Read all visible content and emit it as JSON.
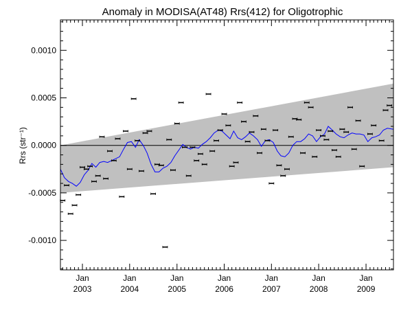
{
  "chart_data": {
    "type": "scatter",
    "title": "Anomaly in MODISA(AT48) Rrs(412) for Oligotrophic",
    "ylabel": "Rrs (str⁻¹)",
    "xlabel": "",
    "xlim": [
      "2002-07-15",
      "2009-08-01"
    ],
    "ylim": [
      -0.00131,
      0.00132
    ],
    "y_ticks": [
      {
        "value": 0.001,
        "label": "0.0010"
      },
      {
        "value": 0.0005,
        "label": "0.0005"
      },
      {
        "value": 0.0,
        "label": "0.0000"
      },
      {
        "value": -0.0005,
        "label": "-0.0005"
      },
      {
        "value": -0.001,
        "label": "-0.0010"
      }
    ],
    "x_ticks": [
      {
        "date": "2003-01-01",
        "month": "Jan",
        "year": "2003"
      },
      {
        "date": "2004-01-01",
        "month": "Jan",
        "year": "2004"
      },
      {
        "date": "2005-01-01",
        "month": "Jan",
        "year": "2005"
      },
      {
        "date": "2006-01-01",
        "month": "Jan",
        "year": "2006"
      },
      {
        "date": "2007-01-01",
        "month": "Jan",
        "year": "2007"
      },
      {
        "date": "2008-01-01",
        "month": "Jan",
        "year": "2008"
      },
      {
        "date": "2009-01-01",
        "month": "Jan",
        "year": "2009"
      }
    ],
    "zero_line": 0.0,
    "grid": false,
    "band": {
      "color": "#c0c0c0",
      "x_start": "2002-07-15",
      "x_end": "2009-08-01",
      "upper_start": 0.0,
      "upper_end": 0.00065,
      "lower_start": -0.0005,
      "lower_end": -0.00023
    },
    "series": [
      {
        "kind": "points",
        "marker": "short horizontal bar with error bars",
        "color": "#000000",
        "points": [
          {
            "x": "2002-08-01",
            "y": -0.00058
          },
          {
            "x": "2002-09-01",
            "y": -0.00042
          },
          {
            "x": "2002-10-01",
            "y": -0.00072
          },
          {
            "x": "2002-11-01",
            "y": -0.00063
          },
          {
            "x": "2002-12-01",
            "y": -0.00052
          },
          {
            "x": "2003-01-01",
            "y": -0.00023
          },
          {
            "x": "2003-02-01",
            "y": -0.00025
          },
          {
            "x": "2003-03-01",
            "y": -0.00022
          },
          {
            "x": "2003-04-01",
            "y": -0.00038
          },
          {
            "x": "2003-05-01",
            "y": -0.00032
          },
          {
            "x": "2003-06-01",
            "y": 9e-05
          },
          {
            "x": "2003-07-01",
            "y": -0.00035
          },
          {
            "x": "2003-08-01",
            "y": -6e-05
          },
          {
            "x": "2003-09-01",
            "y": -0.00016
          },
          {
            "x": "2003-10-01",
            "y": 7e-05
          },
          {
            "x": "2003-11-01",
            "y": -0.00054
          },
          {
            "x": "2003-12-01",
            "y": 0.00015
          },
          {
            "x": "2004-01-01",
            "y": -0.00025
          },
          {
            "x": "2004-02-01",
            "y": 0.00049
          },
          {
            "x": "2004-03-01",
            "y": 5e-05
          },
          {
            "x": "2004-04-01",
            "y": -0.00027
          },
          {
            "x": "2004-05-01",
            "y": 0.00013
          },
          {
            "x": "2004-06-01",
            "y": 0.00015
          },
          {
            "x": "2004-07-01",
            "y": -0.00051
          },
          {
            "x": "2004-08-01",
            "y": -0.0002
          },
          {
            "x": "2004-09-01",
            "y": -0.00021
          },
          {
            "x": "2004-10-01",
            "y": -0.00107
          },
          {
            "x": "2004-11-01",
            "y": 6e-05
          },
          {
            "x": "2004-12-01",
            "y": -0.00026
          },
          {
            "x": "2005-01-01",
            "y": 0.00023
          },
          {
            "x": "2005-02-01",
            "y": 0.00045
          },
          {
            "x": "2005-03-01",
            "y": -2e-05
          },
          {
            "x": "2005-04-01",
            "y": -0.00032
          },
          {
            "x": "2005-05-01",
            "y": -2e-05
          },
          {
            "x": "2005-06-01",
            "y": -0.00016
          },
          {
            "x": "2005-07-01",
            "y": -9e-05
          },
          {
            "x": "2005-08-01",
            "y": -0.0002
          },
          {
            "x": "2005-09-01",
            "y": 0.00054
          },
          {
            "x": "2005-10-01",
            "y": -6e-05
          },
          {
            "x": "2005-11-01",
            "y": 5e-05
          },
          {
            "x": "2005-12-01",
            "y": 0.00016
          },
          {
            "x": "2006-01-01",
            "y": 0.00033
          },
          {
            "x": "2006-02-01",
            "y": 0.00021
          },
          {
            "x": "2006-03-01",
            "y": -0.00022
          },
          {
            "x": "2006-04-01",
            "y": -0.00018
          },
          {
            "x": "2006-05-01",
            "y": 0.00045
          },
          {
            "x": "2006-06-01",
            "y": 0.00025
          },
          {
            "x": "2006-07-01",
            "y": 4e-05
          },
          {
            "x": "2006-08-01",
            "y": 0.00014
          },
          {
            "x": "2006-09-01",
            "y": 0.00031
          },
          {
            "x": "2006-10-01",
            "y": -8e-05
          },
          {
            "x": "2006-11-01",
            "y": 0.00017
          },
          {
            "x": "2006-12-01",
            "y": 5e-05
          },
          {
            "x": "2007-01-01",
            "y": -0.0004
          },
          {
            "x": "2007-02-01",
            "y": 0.00016
          },
          {
            "x": "2007-03-01",
            "y": -0.00021
          },
          {
            "x": "2007-04-01",
            "y": -0.00032
          },
          {
            "x": "2007-05-01",
            "y": -0.00025
          },
          {
            "x": "2007-06-01",
            "y": 9e-05
          },
          {
            "x": "2007-07-01",
            "y": 0.00028
          },
          {
            "x": "2007-08-01",
            "y": 0.00027
          },
          {
            "x": "2007-09-01",
            "y": -8e-05
          },
          {
            "x": "2007-10-01",
            "y": 0.00045
          },
          {
            "x": "2007-11-01",
            "y": 0.0004
          },
          {
            "x": "2007-12-01",
            "y": -0.00012
          },
          {
            "x": "2008-01-01",
            "y": 0.00016
          },
          {
            "x": "2008-02-01",
            "y": 0.0001
          },
          {
            "x": "2008-03-01",
            "y": 6e-05
          },
          {
            "x": "2008-04-01",
            "y": 0.00015
          },
          {
            "x": "2008-05-01",
            "y": -5e-05
          },
          {
            "x": "2008-06-01",
            "y": -0.00012
          },
          {
            "x": "2008-07-01",
            "y": 0.00017
          },
          {
            "x": "2008-08-01",
            "y": 0.00014
          },
          {
            "x": "2008-09-01",
            "y": 0.0004
          },
          {
            "x": "2008-10-01",
            "y": -4e-05
          },
          {
            "x": "2008-11-01",
            "y": 0.00026
          },
          {
            "x": "2008-12-01",
            "y": -0.00022
          },
          {
            "x": "2009-02-01",
            "y": 0.00012
          },
          {
            "x": "2009-03-01",
            "y": 0.00021
          },
          {
            "x": "2009-05-01",
            "y": 5e-05
          },
          {
            "x": "2009-06-01",
            "y": 0.00037
          },
          {
            "x": "2009-07-01",
            "y": 0.00042
          }
        ]
      },
      {
        "kind": "line",
        "color": "#0000ff",
        "points": [
          {
            "x": "2002-07-15",
            "y": -0.00025
          },
          {
            "x": "2002-08-15",
            "y": -0.00034
          },
          {
            "x": "2002-09-15",
            "y": -0.00038
          },
          {
            "x": "2002-10-15",
            "y": -0.0004
          },
          {
            "x": "2002-11-15",
            "y": -0.00043
          },
          {
            "x": "2002-12-15",
            "y": -0.00039
          },
          {
            "x": "2003-01-15",
            "y": -0.00031
          },
          {
            "x": "2003-02-15",
            "y": -0.00026
          },
          {
            "x": "2003-03-15",
            "y": -0.00019
          },
          {
            "x": "2003-04-15",
            "y": -0.00023
          },
          {
            "x": "2003-05-15",
            "y": -0.00018
          },
          {
            "x": "2003-06-15",
            "y": -0.00017
          },
          {
            "x": "2003-07-15",
            "y": -0.00018
          },
          {
            "x": "2003-08-15",
            "y": -0.00016
          },
          {
            "x": "2003-09-15",
            "y": -0.00014
          },
          {
            "x": "2003-10-15",
            "y": -0.00012
          },
          {
            "x": "2003-11-15",
            "y": -4e-05
          },
          {
            "x": "2003-12-15",
            "y": 3e-05
          },
          {
            "x": "2004-01-15",
            "y": 4e-05
          },
          {
            "x": "2004-02-15",
            "y": -2e-05
          },
          {
            "x": "2004-03-15",
            "y": 6e-05
          },
          {
            "x": "2004-04-15",
            "y": 0.0
          },
          {
            "x": "2004-05-15",
            "y": -8e-05
          },
          {
            "x": "2004-06-15",
            "y": -0.0002
          },
          {
            "x": "2004-07-15",
            "y": -0.00028
          },
          {
            "x": "2004-08-15",
            "y": -0.00028
          },
          {
            "x": "2004-09-15",
            "y": -0.00024
          },
          {
            "x": "2004-10-15",
            "y": -0.00022
          },
          {
            "x": "2004-11-15",
            "y": -0.00018
          },
          {
            "x": "2004-12-15",
            "y": -0.00011
          },
          {
            "x": "2005-01-15",
            "y": -5e-05
          },
          {
            "x": "2005-02-15",
            "y": 1e-05
          },
          {
            "x": "2005-03-15",
            "y": -2e-05
          },
          {
            "x": "2005-04-15",
            "y": -4e-05
          },
          {
            "x": "2005-05-15",
            "y": -2e-05
          },
          {
            "x": "2005-06-15",
            "y": -3e-05
          },
          {
            "x": "2005-07-15",
            "y": 1e-05
          },
          {
            "x": "2005-08-15",
            "y": 4e-05
          },
          {
            "x": "2005-09-15",
            "y": 8e-05
          },
          {
            "x": "2005-10-15",
            "y": 0.00013
          },
          {
            "x": "2005-11-15",
            "y": 0.00016
          },
          {
            "x": "2005-12-15",
            "y": 0.00015
          },
          {
            "x": "2006-01-15",
            "y": 0.00011
          },
          {
            "x": "2006-02-15",
            "y": 7e-05
          },
          {
            "x": "2006-03-15",
            "y": 0.00015
          },
          {
            "x": "2006-04-15",
            "y": 8e-05
          },
          {
            "x": "2006-05-15",
            "y": 6e-05
          },
          {
            "x": "2006-06-15",
            "y": 9e-05
          },
          {
            "x": "2006-07-15",
            "y": 0.00013
          },
          {
            "x": "2006-08-15",
            "y": 0.0001
          },
          {
            "x": "2006-09-15",
            "y": 6e-05
          },
          {
            "x": "2006-10-15",
            "y": -1e-05
          },
          {
            "x": "2006-11-15",
            "y": 5e-05
          },
          {
            "x": "2006-12-15",
            "y": 6e-05
          },
          {
            "x": "2007-01-15",
            "y": 3e-05
          },
          {
            "x": "2007-02-15",
            "y": -6e-05
          },
          {
            "x": "2007-03-15",
            "y": -0.00011
          },
          {
            "x": "2007-04-15",
            "y": -0.00012
          },
          {
            "x": "2007-05-15",
            "y": -8e-05
          },
          {
            "x": "2007-06-15",
            "y": 0.0
          },
          {
            "x": "2007-07-15",
            "y": 4e-05
          },
          {
            "x": "2007-08-15",
            "y": 4e-05
          },
          {
            "x": "2007-09-15",
            "y": 7e-05
          },
          {
            "x": "2007-10-15",
            "y": 0.00012
          },
          {
            "x": "2007-11-15",
            "y": 0.0001
          },
          {
            "x": "2007-12-15",
            "y": 4e-05
          },
          {
            "x": "2008-01-15",
            "y": 9e-05
          },
          {
            "x": "2008-02-15",
            "y": 0.00012
          },
          {
            "x": "2008-03-15",
            "y": 0.0002
          },
          {
            "x": "2008-04-15",
            "y": 0.00016
          },
          {
            "x": "2008-05-15",
            "y": 0.00012
          },
          {
            "x": "2008-06-15",
            "y": 9e-05
          },
          {
            "x": "2008-07-15",
            "y": 8e-05
          },
          {
            "x": "2008-08-15",
            "y": 0.00011
          },
          {
            "x": "2008-09-15",
            "y": 0.00013
          },
          {
            "x": "2008-10-15",
            "y": 0.00012
          },
          {
            "x": "2008-11-15",
            "y": 0.00012
          },
          {
            "x": "2008-12-15",
            "y": 0.00011
          },
          {
            "x": "2009-01-15",
            "y": 4e-05
          },
          {
            "x": "2009-02-15",
            "y": 8e-05
          },
          {
            "x": "2009-03-15",
            "y": 9e-05
          },
          {
            "x": "2009-04-15",
            "y": 0.00011
          },
          {
            "x": "2009-05-15",
            "y": 0.00016
          },
          {
            "x": "2009-06-15",
            "y": 0.00018
          },
          {
            "x": "2009-08-01",
            "y": 0.00017
          }
        ]
      }
    ]
  }
}
